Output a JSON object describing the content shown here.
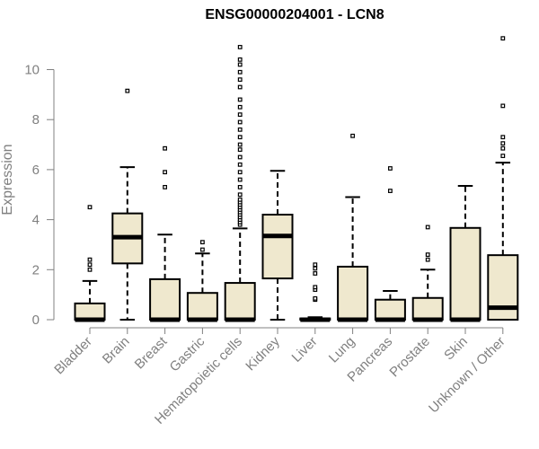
{
  "chart_data": {
    "type": "box",
    "title": "ENSG00000204001 - LCN8",
    "xlabel": "",
    "ylabel": "Expression",
    "ylim": [
      0,
      11.3
    ],
    "yticks": [
      0,
      2,
      4,
      6,
      8,
      10
    ],
    "box_color": "#efe8ce",
    "grid": false,
    "categories": [
      "Bladder",
      "Brain",
      "Breast",
      "Gastric",
      "Hematopoietic cells",
      "Kidney",
      "Liver",
      "Lung",
      "Pancreas",
      "Prostate",
      "Skin",
      "Unknown / Other"
    ],
    "boxes": [
      {
        "min": 0,
        "q1": 0,
        "median": 0,
        "q3": 0.65,
        "max": 1.55,
        "outliers": [
          2.0,
          2.2,
          2.4,
          4.5
        ]
      },
      {
        "min": 0,
        "q1": 2.25,
        "median": 3.3,
        "q3": 4.25,
        "max": 6.1,
        "outliers": [
          9.15
        ]
      },
      {
        "min": 0,
        "q1": 0,
        "median": 0,
        "q3": 1.62,
        "max": 3.4,
        "outliers": [
          5.3,
          5.9,
          6.85
        ]
      },
      {
        "min": 0,
        "q1": 0,
        "median": 0,
        "q3": 1.07,
        "max": 2.65,
        "outliers": [
          2.8,
          3.1
        ]
      },
      {
        "min": 0,
        "q1": 0,
        "median": 0,
        "q3": 1.47,
        "max": 3.65,
        "outliers": [
          3.8,
          3.9,
          4.0,
          4.1,
          4.2,
          4.3,
          4.4,
          4.5,
          4.6,
          4.7,
          4.8,
          5.0,
          5.3,
          5.6,
          5.9,
          6.2,
          6.5,
          6.8,
          7.0,
          7.3,
          7.6,
          7.9,
          8.2,
          8.5,
          8.8,
          9.3,
          9.6,
          9.9,
          10.2,
          10.4,
          10.9
        ]
      },
      {
        "min": 0,
        "q1": 1.65,
        "median": 3.35,
        "q3": 4.2,
        "max": 5.95,
        "outliers": []
      },
      {
        "min": 0,
        "q1": 0,
        "median": 0,
        "q3": 0.05,
        "max": 0.1,
        "outliers": [
          0.8,
          0.85,
          1.2,
          1.3,
          1.85,
          2.05,
          2.2
        ]
      },
      {
        "min": 0,
        "q1": 0,
        "median": 0,
        "q3": 2.12,
        "max": 4.9,
        "outliers": [
          7.35
        ]
      },
      {
        "min": 0,
        "q1": 0,
        "median": 0,
        "q3": 0.8,
        "max": 1.15,
        "outliers": [
          5.15,
          6.05
        ]
      },
      {
        "min": 0,
        "q1": 0,
        "median": 0,
        "q3": 0.87,
        "max": 2.0,
        "outliers": [
          2.4,
          2.6,
          3.7
        ]
      },
      {
        "min": 0,
        "q1": 0,
        "median": 0,
        "q3": 3.67,
        "max": 5.35,
        "outliers": []
      },
      {
        "min": 0,
        "q1": 0,
        "median": 0.48,
        "q3": 2.58,
        "max": 6.28,
        "outliers": [
          6.55,
          6.85,
          7.05,
          7.3,
          8.55,
          11.25
        ]
      }
    ]
  }
}
